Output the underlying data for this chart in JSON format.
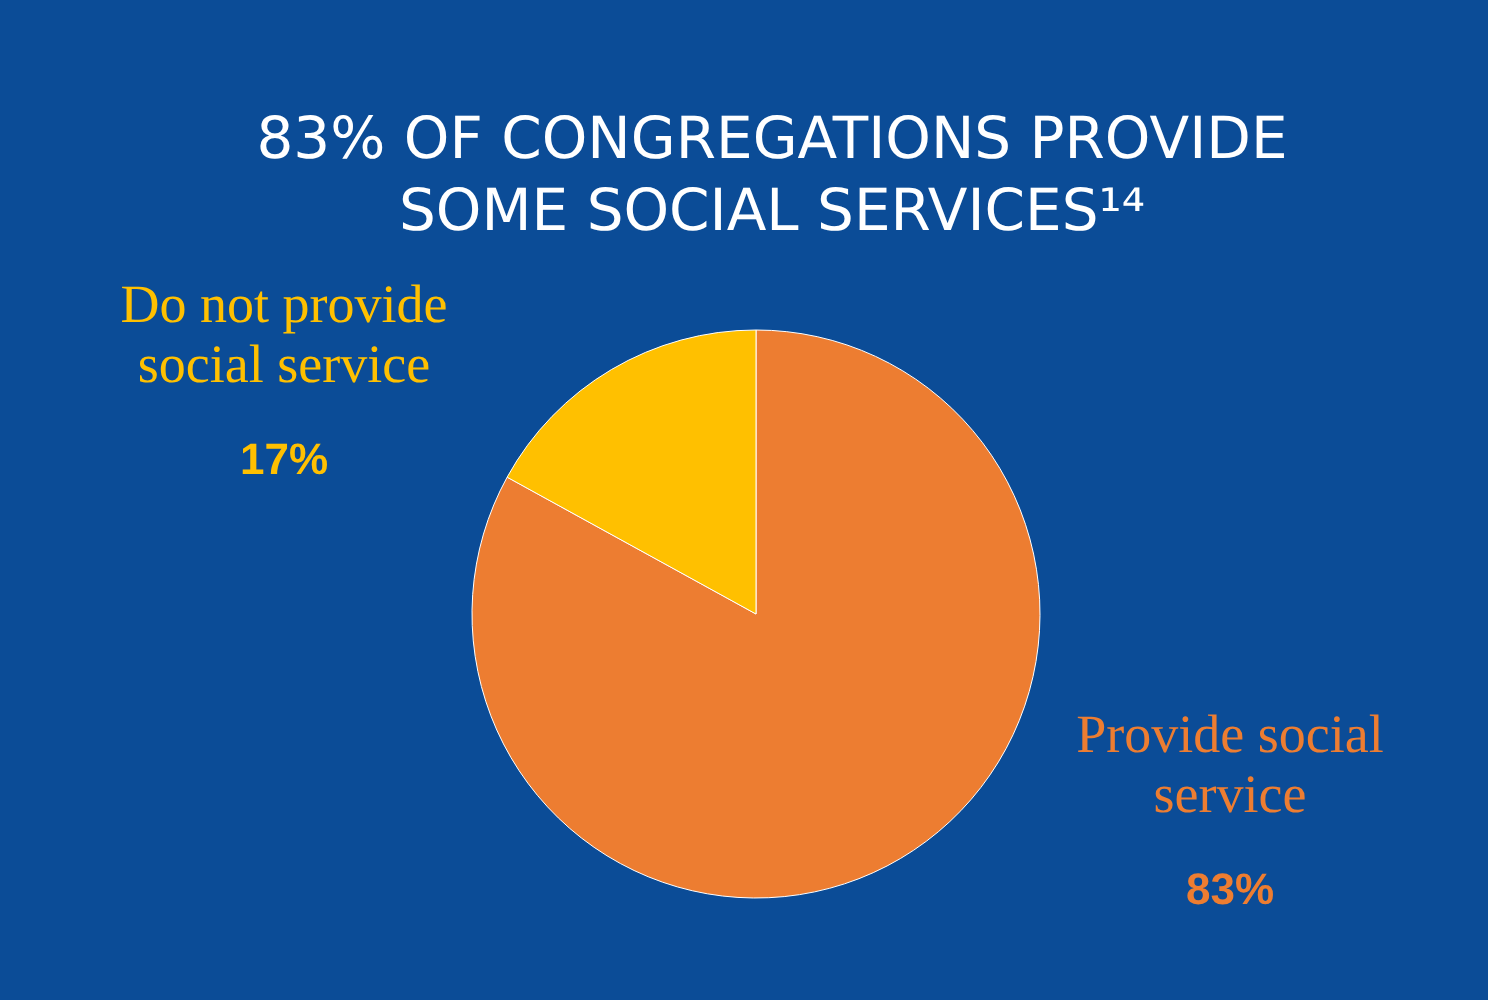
{
  "chart_data": {
    "type": "pie",
    "title": "83% OF CONGREGATIONS PROVIDE SOME SOCIAL SERVICES¹⁴",
    "categories": [
      "Provide social service",
      "Do not provide social service"
    ],
    "values": [
      83,
      17
    ],
    "colors": [
      "#ed7d31",
      "#ffc000"
    ],
    "value_labels": [
      "83%",
      "17%"
    ]
  }
}
